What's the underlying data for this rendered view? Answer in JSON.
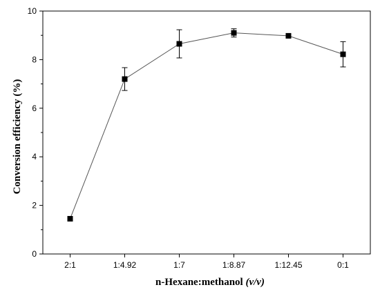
{
  "chart_data": {
    "type": "line",
    "title": "",
    "xlabel_main": "n-Hexane:methanol ",
    "xlabel_unit": "(v/v)",
    "ylabel": "Conversion efficiency (%)",
    "categories": [
      "2:1",
      "1:4.92",
      "1:7",
      "1:8.87",
      "1:12.45",
      "0:1"
    ],
    "series": [
      {
        "values": [
          1.45,
          7.2,
          8.65,
          9.1,
          8.98,
          8.22
        ],
        "errors": [
          0,
          0.47,
          0.58,
          0.17,
          0,
          0.52
        ]
      }
    ],
    "ylim": [
      0,
      10
    ],
    "yticks": [
      0,
      2,
      4,
      6,
      8,
      10
    ],
    "grid": false,
    "legend": false,
    "marker": "square",
    "colors": {
      "line": "#555555",
      "marker": "#000000",
      "axis": "#000000"
    }
  }
}
